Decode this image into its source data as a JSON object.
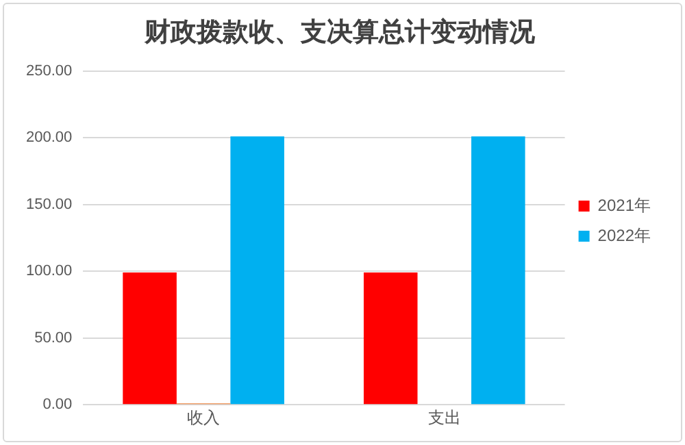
{
  "chart_data": {
    "type": "bar",
    "title": "财政拨款收、支决算总计变动情况",
    "categories": [
      "收入",
      "支出"
    ],
    "series": [
      {
        "name": "2021年",
        "color": "#ff0000",
        "values": [
          99,
          99
        ]
      },
      {
        "color": "#ed7d31",
        "values": [
          1,
          0
        ]
      },
      {
        "name": "2022年",
        "color": "#00b0f0",
        "values": [
          201,
          201
        ]
      }
    ],
    "ylim": [
      0,
      250
    ],
    "yticks": [
      {
        "value": 0,
        "label": "0.00"
      },
      {
        "value": 50,
        "label": "50.00"
      },
      {
        "value": 100,
        "label": "100.00"
      },
      {
        "value": 150,
        "label": "150.00"
      },
      {
        "value": 200,
        "label": "200.00"
      },
      {
        "value": 250,
        "label": "250.00"
      }
    ],
    "grid": "y",
    "legend": "right"
  }
}
